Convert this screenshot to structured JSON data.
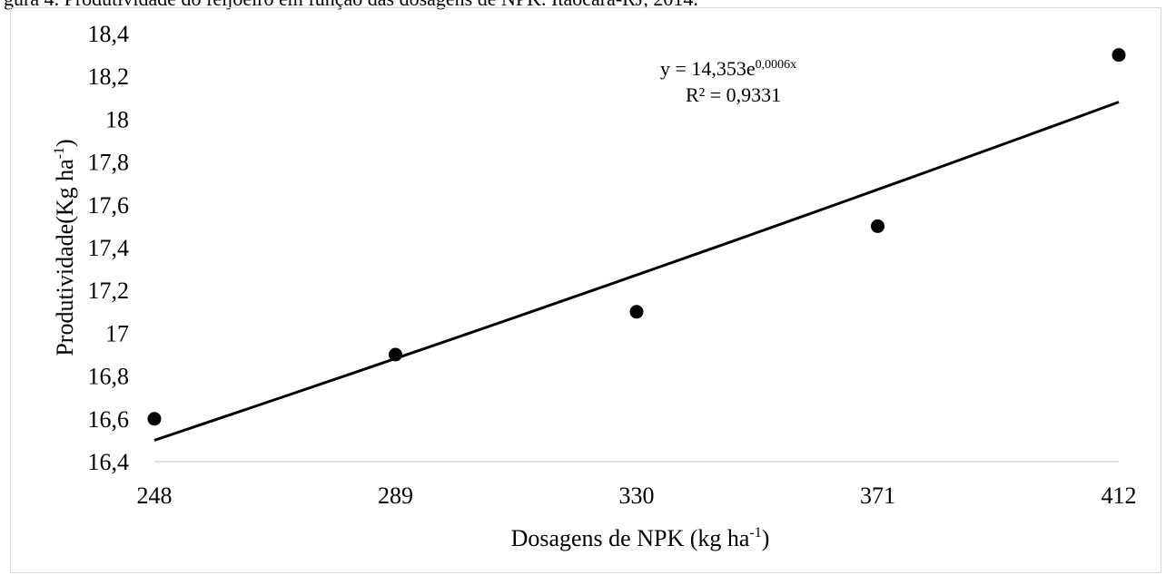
{
  "caption": "gura 4. Produtividade do feijoeiro em função das dosagens de NPK. Itaocara-RJ, 2014.",
  "chart_data": {
    "type": "scatter",
    "title": "",
    "xlabel": "Dosagens de NPK (kg ha",
    "xlabel_sup": "-1",
    "xlabel_end": ")",
    "ylabel": "Produtividade(Kg ha",
    "ylabel_sup": "-1",
    "ylabel_end": ")",
    "x_categories": [
      "248",
      "289",
      "330",
      "371",
      "412"
    ],
    "x": [
      248,
      289,
      330,
      371,
      412
    ],
    "y": [
      16.6,
      16.9,
      17.1,
      17.5,
      18.3
    ],
    "xlim": [
      248,
      412
    ],
    "ylim": [
      16.4,
      18.4
    ],
    "y_ticks": [
      "16,4",
      "16,6",
      "16,8",
      "17",
      "17,2",
      "17,4",
      "17,6",
      "17,8",
      "18",
      "18,2",
      "18,4"
    ],
    "trendline": {
      "type": "exponential",
      "y_start": 16.5,
      "y_end": 18.08,
      "equation_prefix": "y = 14,353e",
      "equation_exponent": "0,0006x",
      "r2_text": "R² = 0,9331"
    },
    "grid": false,
    "legend": "none",
    "marker_color": "#000000",
    "line_color": "#000000"
  }
}
